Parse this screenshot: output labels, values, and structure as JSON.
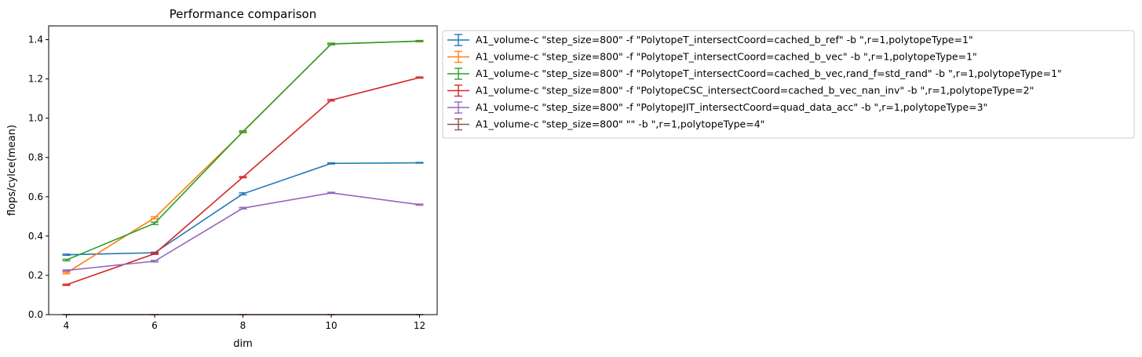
{
  "chart_data": {
    "type": "line",
    "title": "Performance comparison",
    "xlabel": "dim",
    "ylabel": "flops/cylce(mean)",
    "xlim": [
      3.6,
      12.4
    ],
    "ylim": [
      0.0,
      1.47
    ],
    "x_ticks": [
      4,
      6,
      8,
      10,
      12
    ],
    "y_ticks": [
      0.0,
      0.2,
      0.4,
      0.6,
      0.8,
      1.0,
      1.2,
      1.4
    ],
    "grid": false,
    "legend_position": "outside-right",
    "error_bars": true,
    "series": [
      {
        "name": "A1_volume-c \"step_size=800\" -f \"PolytopeT_intersectCoord=cached_b_ref\" -b \",r=1,polytopeType=1\"",
        "color": "#1f77b4",
        "x": [
          4,
          6,
          8,
          10,
          12
        ],
        "y": [
          0.305,
          0.315,
          0.615,
          0.77,
          0.773
        ],
        "err": [
          0.003,
          0.003,
          0.005,
          0.003,
          0.002
        ]
      },
      {
        "name": "A1_volume-c \"step_size=800\" -f \"PolytopeT_intersectCoord=cached_b_vec\" -b \",r=1,polytopeType=1\"",
        "color": "#ff7f0e",
        "x": [
          4,
          6,
          8,
          10,
          12
        ],
        "y": [
          0.212,
          0.493,
          0.93,
          1.378,
          1.392
        ],
        "err": [
          0.004,
          0.005,
          0.004,
          0.004,
          0.003
        ]
      },
      {
        "name": "A1_volume-c \"step_size=800\" -f \"PolytopeT_intersectCoord=cached_b_vec,rand_f=std_rand\" -b \",r=1,polytopeType=1\"",
        "color": "#2ca02c",
        "x": [
          4,
          6,
          8,
          10,
          12
        ],
        "y": [
          0.278,
          0.465,
          0.932,
          1.378,
          1.393
        ],
        "err": [
          0.004,
          0.006,
          0.004,
          0.004,
          0.003
        ]
      },
      {
        "name": "A1_volume-c \"step_size=800\" -f \"PolytopeCSC_intersectCoord=cached_b_vec_nan_inv\" -b \",r=1,polytopeType=2\"",
        "color": "#d62728",
        "x": [
          4,
          6,
          8,
          10,
          12
        ],
        "y": [
          0.152,
          0.31,
          0.7,
          1.092,
          1.207
        ],
        "err": [
          0.003,
          0.003,
          0.003,
          0.004,
          0.003
        ]
      },
      {
        "name": "A1_volume-c \"step_size=800\" -f \"PolytopeJIT_intersectCoord=quad_data_acc\" -b \",r=1,polytopeType=3\"",
        "color": "#9467bd",
        "x": [
          4,
          6,
          8,
          10,
          12
        ],
        "y": [
          0.225,
          0.272,
          0.542,
          0.62,
          0.56
        ],
        "err": [
          0.003,
          0.004,
          0.004,
          0.003,
          0.003
        ]
      },
      {
        "name": "A1_volume-c \"step_size=800\"  \"\" -b \",r=1,polytopeType=4\"",
        "color": "#8c564b",
        "x": [
          4,
          6,
          8,
          10,
          12
        ],
        "y": [
          0.0,
          0.0,
          0.0,
          0.0,
          0.0
        ],
        "err": [
          0.0,
          0.0,
          0.0,
          0.0,
          0.0
        ]
      }
    ]
  }
}
